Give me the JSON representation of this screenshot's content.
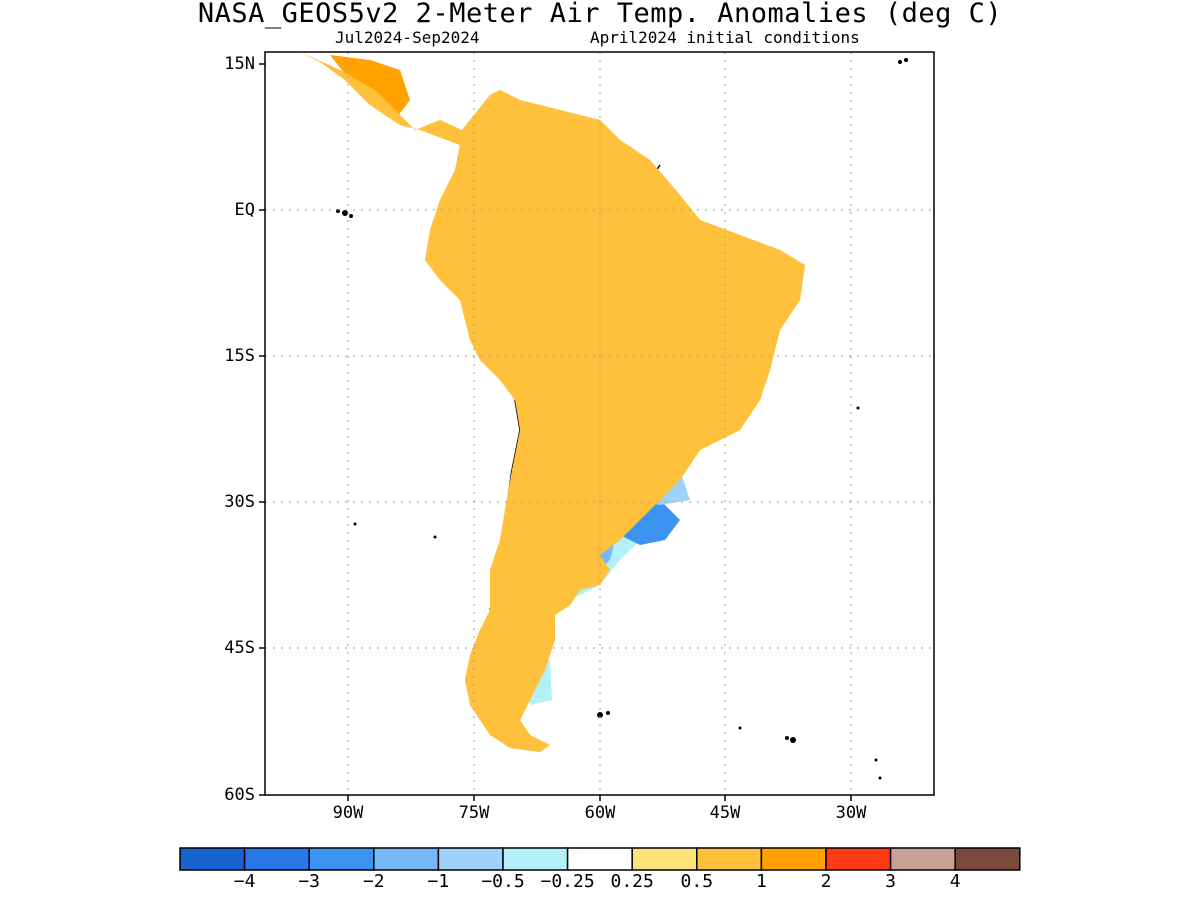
{
  "title": "NASA_GEOS5v2 2-Meter Air Temp. Anomalies (deg C)",
  "subtitle_left": "Jul2024-Sep2024",
  "subtitle_right": "April2024 initial conditions",
  "axes": {
    "lat_labels": [
      "15N",
      "EQ",
      "15S",
      "30S",
      "45S",
      "60S"
    ],
    "lon_labels": [
      "90W",
      "75W",
      "60W",
      "45W",
      "30W"
    ]
  },
  "colorbar": {
    "colors": [
      "#1763cf",
      "#2a78e8",
      "#3d93f2",
      "#76b8f7",
      "#9dd2fa",
      "#b4f0fa",
      "#ffffff",
      "#ffe27a",
      "#ffc13c",
      "#ffa200",
      "#ff3a14",
      "#c9a194",
      "#7a4b3c"
    ],
    "labels": [
      "−4",
      "−3",
      "−2",
      "−1",
      "−0.5",
      "−0.25",
      "0.25",
      "0.5",
      "1",
      "2",
      "3",
      "4"
    ]
  },
  "map_regions": {
    "warm_light": "#ffe27a",
    "warm": "#ffc13c",
    "warm_strong": "#ffa200",
    "hot": "#ff3a14",
    "cool_light": "#b4f0fa",
    "cool": "#9dd2fa",
    "cool_mid": "#76b8f7",
    "cool_strong": "#3d93f2"
  }
}
